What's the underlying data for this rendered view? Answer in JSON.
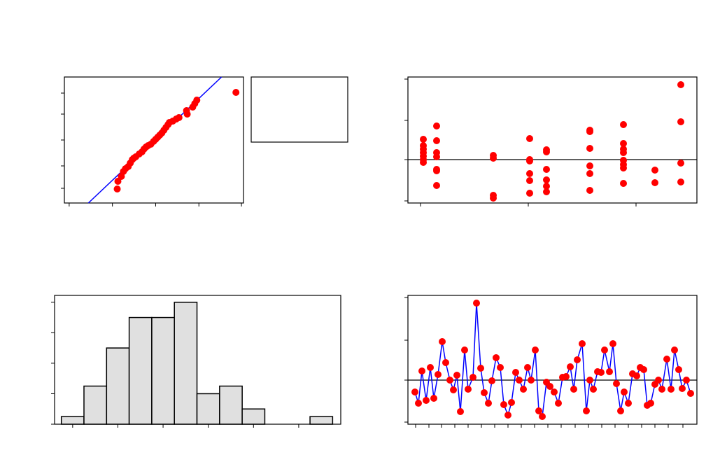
{
  "chart_data": [
    {
      "type": "scatter",
      "xlim": [
        0,
        261
      ],
      "ylim": [
        0,
        180
      ],
      "xticks": [
        7,
        70,
        133,
        196,
        258
      ],
      "yticks": [
        21,
        53,
        90,
        127,
        157
      ],
      "series": [
        {
          "style": "line",
          "color": "#0000ff",
          "x": [
            35,
            229
          ],
          "values": [
            0,
            180
          ]
        },
        {
          "style": "points",
          "color": "#ff0000",
          "x": [
            77,
            78,
            83,
            86,
            89,
            93,
            96,
            99,
            101,
            104,
            109,
            113,
            116,
            119,
            122,
            126,
            130,
            133,
            136,
            139,
            142,
            145,
            148,
            151,
            153,
            158,
            163,
            167,
            178,
            179,
            187,
            190,
            193,
            250
          ],
          "values": [
            20,
            31,
            38,
            45,
            49,
            52,
            57,
            62,
            64,
            66,
            70,
            73,
            77,
            80,
            82,
            84,
            88,
            91,
            94,
            97,
            100,
            104,
            108,
            112,
            115,
            117,
            120,
            122,
            132,
            127,
            137,
            142,
            147,
            158
          ]
        }
      ]
    },
    {
      "type": "scatter",
      "xlim": [
        0,
        413
      ],
      "ylim": [
        0,
        180
      ],
      "xticks": [
        18,
        172,
        326
      ],
      "yticks": [
        3,
        62,
        118,
        177
      ],
      "hline": 62,
      "series": [
        {
          "style": "points",
          "color": "#ff0000",
          "x": [
            22,
            22,
            22,
            22,
            22,
            22,
            22,
            41,
            41,
            41,
            41,
            41,
            41,
            41,
            122,
            122,
            122,
            122,
            174,
            174,
            174,
            174,
            174,
            174,
            198,
            198,
            198,
            198,
            198,
            198,
            260,
            260,
            260,
            260,
            260,
            260,
            308,
            308,
            308,
            308,
            308,
            308,
            308,
            308,
            353,
            353,
            390,
            390,
            390,
            390
          ],
          "values": [
            91,
            82,
            77,
            72,
            67,
            62,
            58,
            110,
            89,
            72,
            66,
            48,
            46,
            25,
            68,
            64,
            11,
            7,
            92,
            62,
            60,
            42,
            32,
            14,
            76,
            73,
            48,
            33,
            24,
            16,
            104,
            102,
            78,
            53,
            42,
            18,
            112,
            85,
            77,
            72,
            61,
            55,
            50,
            28,
            47,
            29,
            169,
            116,
            57,
            30
          ]
        }
      ]
    },
    {
      "type": "histogram",
      "xlim": [
        -4.8,
        7.86
      ],
      "ylim": [
        0,
        16.9
      ],
      "xticks": [
        -4,
        -2,
        0,
        2,
        4,
        6
      ],
      "yticks": [
        0,
        4,
        8,
        12,
        16
      ],
      "color": "#e0e0e0",
      "bins": [
        -4.5,
        -3.5,
        -2.5,
        -1.5,
        -0.5,
        0.5,
        1.5,
        2.5,
        3.5,
        4.5,
        5.5,
        6.5,
        7.5
      ],
      "counts": [
        1,
        5,
        10,
        14,
        14,
        16,
        4,
        5,
        2,
        0,
        0,
        1
      ]
    },
    {
      "type": "scatter",
      "xlim": [
        0,
        413
      ],
      "ylim": [
        0,
        184
      ],
      "xticks": [
        11,
        30,
        48,
        67,
        86,
        105,
        124,
        143,
        162,
        181,
        200,
        219,
        239,
        258,
        277,
        296,
        315,
        334,
        353,
        372,
        393
      ],
      "yticks": [
        3,
        63,
        120,
        181
      ],
      "hline": 63,
      "series": [
        {
          "style": "line+points",
          "color": "#0000ff",
          "marker_color": "#ff0000",
          "x": [
            10,
            15,
            20,
            26,
            32,
            37,
            43,
            49,
            54,
            60,
            65,
            70,
            75,
            81,
            86,
            93,
            98,
            104,
            109,
            115,
            120,
            126,
            132,
            137,
            143,
            148,
            154,
            159,
            165,
            171,
            176,
            182,
            187,
            192,
            198,
            203,
            209,
            215,
            221,
            226,
            232,
            237,
            242,
            249,
            255,
            260,
            265,
            271,
            276,
            281,
            288,
            293,
            298,
            304,
            309,
            315,
            321,
            327,
            332,
            337,
            342,
            347,
            353,
            358,
            363,
            370,
            376,
            381,
            387,
            392,
            398,
            404
          ],
          "values": [
            46,
            30,
            76,
            34,
            81,
            37,
            71,
            118,
            88,
            63,
            49,
            70,
            18,
            106,
            50,
            67,
            173,
            80,
            45,
            30,
            62,
            95,
            81,
            28,
            13,
            31,
            74,
            63,
            50,
            81,
            63,
            106,
            19,
            11,
            60,
            54,
            46,
            30,
            67,
            68,
            82,
            50,
            92,
            115,
            19,
            63,
            50,
            75,
            74,
            106,
            75,
            115,
            58,
            19,
            46,
            30,
            72,
            69,
            81,
            78,
            27,
            30,
            57,
            63,
            50,
            93,
            50,
            106,
            78,
            51,
            63,
            44
          ]
        }
      ]
    }
  ]
}
